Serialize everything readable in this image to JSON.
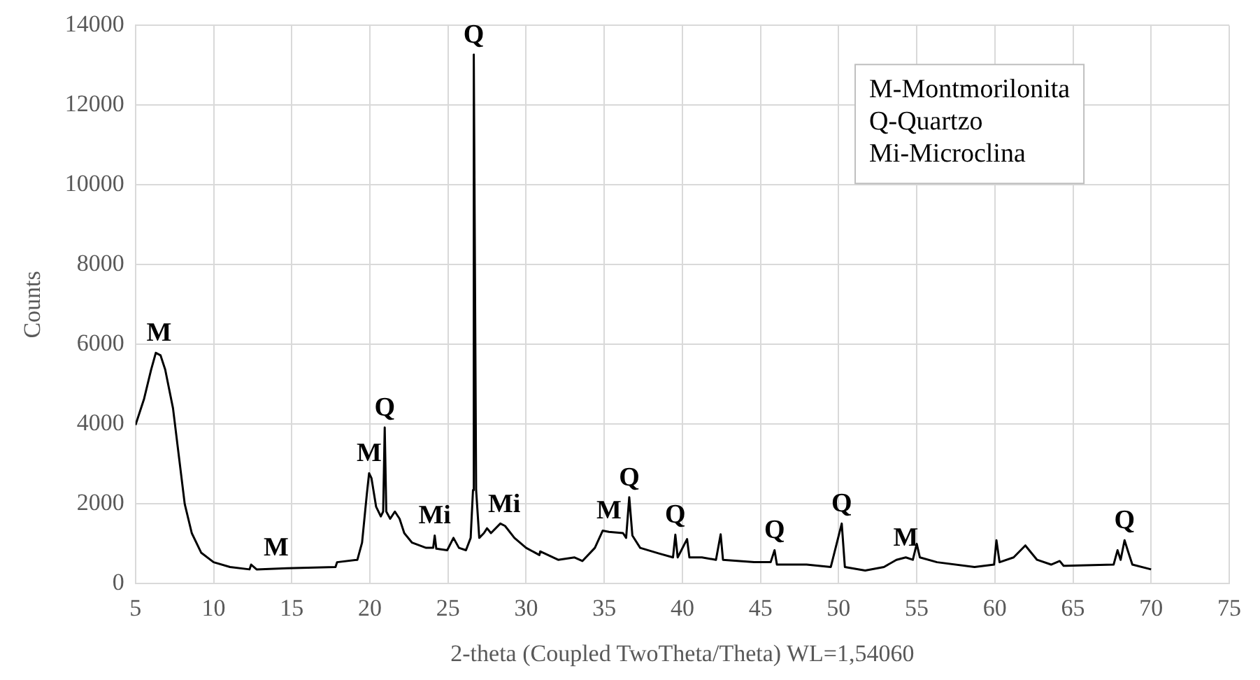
{
  "chart_data": {
    "type": "line",
    "xlabel": "2-theta (Coupled TwoTheta/Theta) WL=1,54060",
    "ylabel": "Counts",
    "x": [
      5,
      5.55,
      6.0,
      6.3,
      6.6,
      6.9,
      7.4,
      7.7,
      8.15,
      8.6,
      9.2,
      10.0,
      11.05,
      12.3,
      12.4,
      12.75,
      14.7,
      17.8,
      17.9,
      19.2,
      19.5,
      19.8,
      19.95,
      20.1,
      20.4,
      20.7,
      20.85,
      20.95,
      21.05,
      21.3,
      21.6,
      21.9,
      22.2,
      22.7,
      23.6,
      24.05,
      24.15,
      24.25,
      24.95,
      25.35,
      25.7,
      26.15,
      26.45,
      26.6,
      26.65,
      26.8,
      27.0,
      27.3,
      27.5,
      27.75,
      28.35,
      28.65,
      29.25,
      30.0,
      30.85,
      30.9,
      32.05,
      33.1,
      33.6,
      34.4,
      34.9,
      35.3,
      36.2,
      36.4,
      36.6,
      36.8,
      37.3,
      38.5,
      39.4,
      39.55,
      39.7,
      40.3,
      40.45,
      41.25,
      42.15,
      42.45,
      42.6,
      44.6,
      45.65,
      45.9,
      46.05,
      47.95,
      49.5,
      50.2,
      50.4,
      51.7,
      52.9,
      53.7,
      54.3,
      54.75,
      55.0,
      55.2,
      56.3,
      58.7,
      59.95,
      60.1,
      60.3,
      61.2,
      61.95,
      62.7,
      63.6,
      64.15,
      64.4,
      67.6,
      67.85,
      68.05,
      68.3,
      68.5,
      68.8,
      70.0
    ],
    "series": [
      {
        "color": "#000000",
        "values": [
          3980,
          4640,
          5370,
          5790,
          5730,
          5370,
          4400,
          3440,
          2000,
          1270,
          780,
          540,
          420,
          360,
          480,
          360,
          390,
          420,
          540,
          600,
          1030,
          2230,
          2770,
          2650,
          1930,
          1690,
          1810,
          3920,
          1810,
          1630,
          1810,
          1630,
          1270,
          1030,
          900,
          900,
          1210,
          880,
          840,
          1150,
          900,
          840,
          1150,
          2350,
          13270,
          2350,
          1150,
          1270,
          1390,
          1270,
          1510,
          1450,
          1150,
          900,
          720,
          810,
          600,
          660,
          570,
          900,
          1330,
          1300,
          1270,
          1150,
          2170,
          1210,
          900,
          760,
          660,
          1230,
          660,
          1120,
          660,
          660,
          600,
          1240,
          600,
          540,
          540,
          840,
          480,
          480,
          420,
          1510,
          420,
          330,
          420,
          600,
          660,
          600,
          1000,
          660,
          540,
          420,
          480,
          1090,
          540,
          660,
          960,
          600,
          480,
          570,
          450,
          480,
          840,
          600,
          1090,
          840,
          480,
          360
        ]
      }
    ],
    "xlim": [
      5,
      75
    ],
    "xticks": [
      5,
      10,
      15,
      20,
      25,
      30,
      35,
      40,
      45,
      50,
      55,
      60,
      65,
      70,
      75
    ],
    "ylim": [
      0,
      14000
    ],
    "yticks": [
      0,
      2000,
      4000,
      6000,
      8000,
      10000,
      12000,
      14000
    ],
    "grid": true,
    "legend": false,
    "marker": "none",
    "line_style": "solid",
    "annotations": [
      "M-Montmorilonita\nQ-Quartzo\nMi-Microclina",
      {
        "text": "M",
        "x": 6.5,
        "y": 5790
      },
      {
        "text": "M",
        "x": 14,
        "y": 400
      },
      {
        "text": "M",
        "x": 19.95,
        "y": 2770
      },
      {
        "text": "Q",
        "x": 20.95,
        "y": 3920
      },
      {
        "text": "Mi",
        "x": 24.15,
        "y": 1210
      },
      {
        "text": "Q",
        "x": 26.65,
        "y": 13270
      },
      {
        "text": "Mi",
        "x": 28.6,
        "y": 1500
      },
      {
        "text": "M",
        "x": 35.3,
        "y": 1330
      },
      {
        "text": "Q",
        "x": 36.6,
        "y": 2170
      },
      {
        "text": "Q",
        "x": 39.55,
        "y": 1230
      },
      {
        "text": "Q",
        "x": 45.9,
        "y": 840
      },
      {
        "text": "Q",
        "x": 50.2,
        "y": 1510
      },
      {
        "text": "M",
        "x": 54.3,
        "y": 660
      },
      {
        "text": "Q",
        "x": 68.3,
        "y": 1090
      }
    ]
  }
}
